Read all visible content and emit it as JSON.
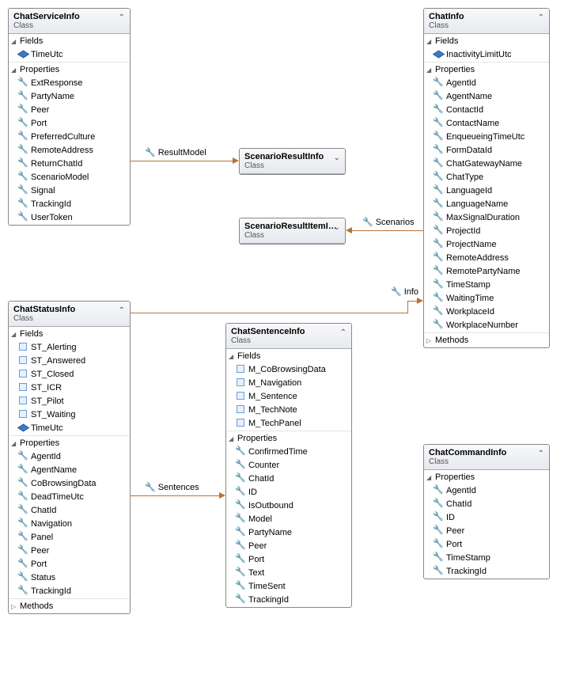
{
  "classes": {
    "chatServiceInfo": {
      "name": "ChatServiceInfo",
      "sub": "Class",
      "fields": [
        "TimeUtc"
      ],
      "properties": [
        "ExtResponse",
        "PartyName",
        "Peer",
        "Port",
        "PreferredCulture",
        "RemoteAddress",
        "ReturnChatId",
        "ScenarioModel",
        "Signal",
        "TrackingId",
        "UserToken"
      ]
    },
    "chatInfo": {
      "name": "ChatInfo",
      "sub": "Class",
      "fields": [
        "InactivityLimitUtc"
      ],
      "properties": [
        "AgentId",
        "AgentName",
        "ContactId",
        "ContactName",
        "EnqueueingTimeUtc",
        "FormDataId",
        "ChatGatewayName",
        "ChatType",
        "LanguageId",
        "LanguageName",
        "MaxSignalDuration",
        "ProjectId",
        "ProjectName",
        "RemoteAddress",
        "RemotePartyName",
        "TimeStamp",
        "WaitingTime",
        "WorkplaceId",
        "WorkplaceNumber"
      ],
      "methods": true
    },
    "scenarioResult": {
      "name": "ScenarioResultInfo",
      "sub": "Class"
    },
    "scenarioResultItem": {
      "name": "ScenarioResultItemI…",
      "sub": "Class"
    },
    "chatStatusInfo": {
      "name": "ChatStatusInfo",
      "sub": "Class",
      "fieldsBox": [
        "ST_Alerting",
        "ST_Answered",
        "ST_Closed",
        "ST_ICR",
        "ST_Pilot",
        "ST_Waiting"
      ],
      "fieldsCube": [
        "TimeUtc"
      ],
      "properties": [
        "AgentId",
        "AgentName",
        "CoBrowsingData",
        "DeadTimeUtc",
        "ChatId",
        "Navigation",
        "Panel",
        "Peer",
        "Port",
        "Status",
        "TrackingId"
      ],
      "methods": true
    },
    "chatSentenceInfo": {
      "name": "ChatSentenceInfo",
      "sub": "Class",
      "fields": [
        "M_CoBrowsingData",
        "M_Navigation",
        "M_Sentence",
        "M_TechNote",
        "M_TechPanel"
      ],
      "properties": [
        "ConfirmedTime",
        "Counter",
        "ChatId",
        "ID",
        "IsOutbound",
        "Model",
        "PartyName",
        "Peer",
        "Port",
        "Text",
        "TimeSent",
        "TrackingId"
      ]
    },
    "chatCommandInfo": {
      "name": "ChatCommandInfo",
      "sub": "Class",
      "properties": [
        "AgentId",
        "ChatId",
        "ID",
        "Peer",
        "Port",
        "TimeStamp",
        "TrackingId"
      ]
    }
  },
  "labels": {
    "resultModel": "ResultModel",
    "scenarios": "Scenarios",
    "info": "Info",
    "sentences": "Sentences",
    "fields": "Fields",
    "properties": "Properties",
    "methods": "Methods"
  }
}
